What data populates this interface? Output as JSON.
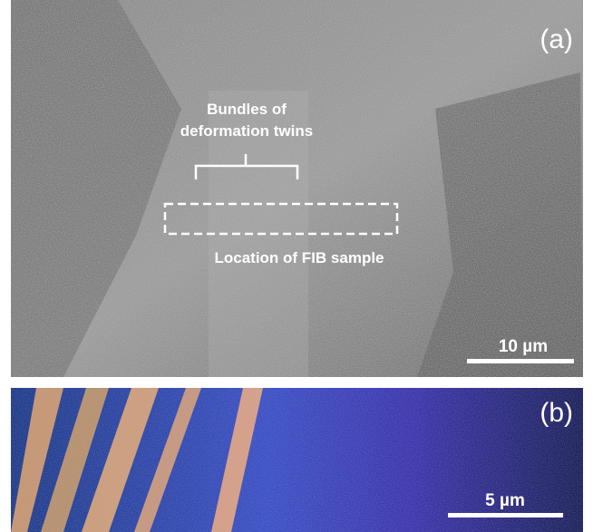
{
  "panel_a": {
    "label": "(a)",
    "twins_label": [
      "Bundles of",
      "deformation twins"
    ],
    "fib_label": "Location of FIB sample",
    "scale_bar": "10 µm"
  },
  "panel_b": {
    "label": "(b)",
    "scale_bar": "5 µm"
  }
}
